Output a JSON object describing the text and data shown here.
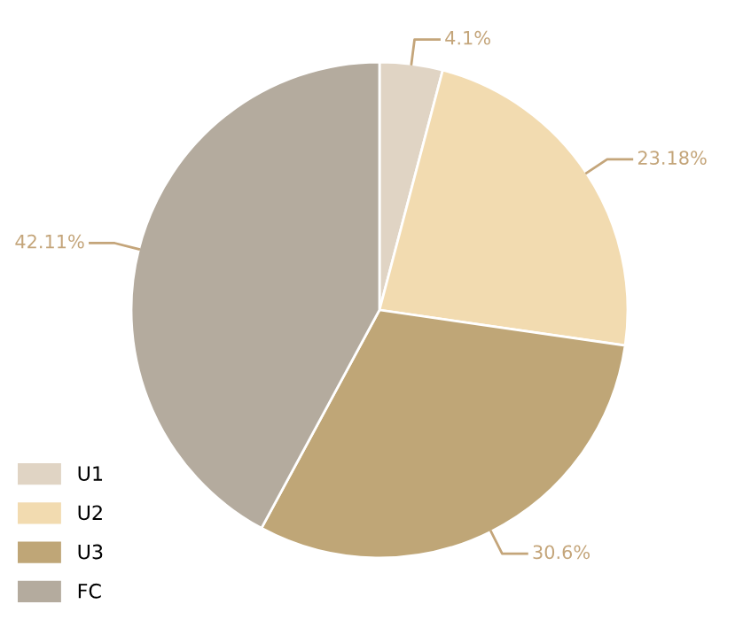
{
  "chart_data": {
    "type": "pie",
    "categories": [
      "U1",
      "U2",
      "U3",
      "FC"
    ],
    "values": [
      4.1,
      23.18,
      30.6,
      42.11
    ],
    "colors": [
      "#e0d4c4",
      "#f2dbb0",
      "#bfa677",
      "#b4ab9e"
    ],
    "value_labels": [
      "4.1%",
      "23.18%",
      "30.6%",
      "42.11%"
    ],
    "legend": "bottom left"
  }
}
